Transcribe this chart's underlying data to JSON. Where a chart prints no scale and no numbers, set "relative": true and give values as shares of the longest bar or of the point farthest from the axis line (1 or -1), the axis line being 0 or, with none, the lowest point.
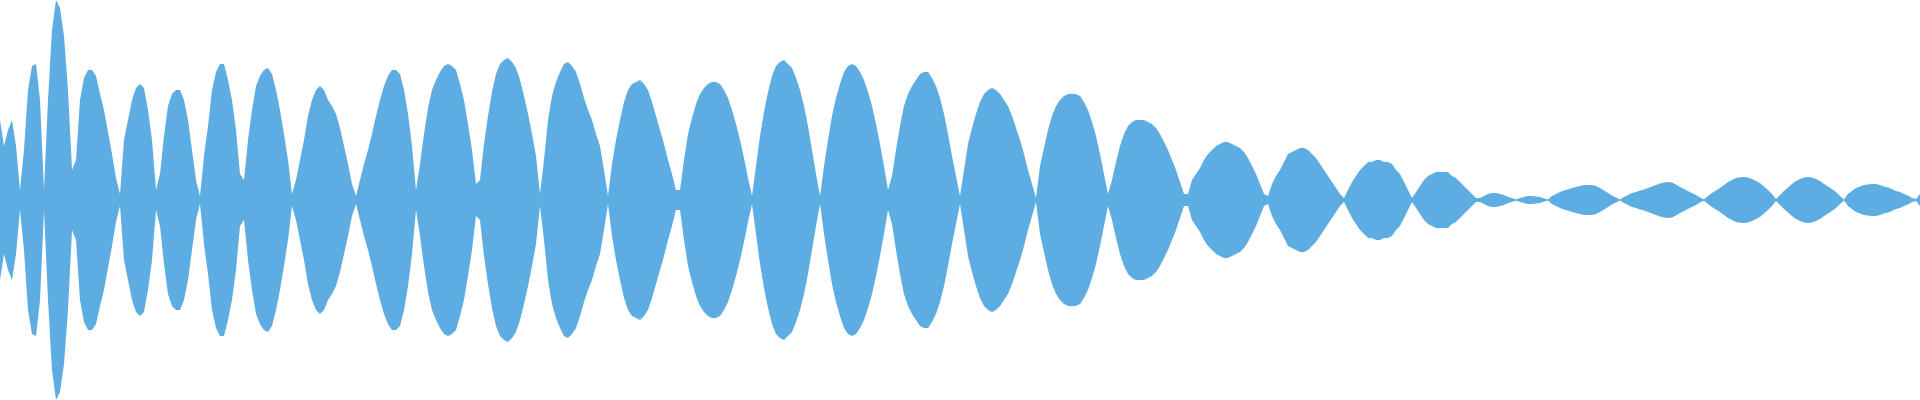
{
  "chart_data": {
    "type": "area",
    "relative": true,
    "categories": [
      null,
      null,
      null,
      null,
      null,
      null,
      null,
      null,
      null,
      null,
      null,
      null,
      null,
      null,
      null,
      null,
      null,
      null,
      null,
      null,
      null,
      null,
      null,
      null,
      null,
      null,
      null,
      null,
      null,
      null,
      null,
      null,
      null,
      null,
      null,
      null,
      null,
      null,
      null,
      null,
      null,
      null,
      null,
      null,
      null,
      null,
      null,
      null,
      null,
      null,
      null,
      null,
      null,
      null,
      null,
      null,
      null,
      null,
      null,
      null,
      null,
      null,
      null,
      null,
      null,
      null,
      null,
      null,
      null,
      null,
      null,
      null,
      null,
      null,
      null,
      null,
      null,
      null,
      null,
      null,
      null,
      null,
      null,
      null,
      null,
      null,
      null,
      null,
      null,
      null,
      null,
      null,
      null,
      null,
      null,
      null,
      null,
      null,
      null,
      null,
      null,
      null,
      null,
      null,
      null,
      null,
      null,
      null,
      null,
      null,
      null,
      null,
      null,
      null,
      null,
      null,
      null,
      null,
      null,
      null,
      null,
      null,
      null,
      null,
      null,
      null,
      null,
      null,
      null,
      null,
      null,
      null,
      null,
      null,
      null,
      null,
      null,
      null,
      null,
      null,
      null,
      null,
      null,
      null,
      null,
      null,
      null,
      null,
      null,
      null,
      null,
      null,
      null,
      null,
      null,
      null,
      null,
      null,
      null,
      null,
      null,
      null,
      null,
      null,
      null,
      null,
      null,
      null,
      null,
      null,
      null,
      null,
      null,
      null,
      null,
      null,
      null,
      null,
      null,
      null,
      null,
      null,
      null,
      null,
      null,
      null,
      null,
      null,
      null,
      null,
      null,
      null,
      null,
      null,
      null,
      null,
      null,
      null,
      null,
      null,
      null,
      null,
      null,
      null,
      null,
      null,
      null,
      null,
      null,
      null,
      null,
      null,
      null,
      null,
      null,
      null,
      null,
      null,
      null,
      null,
      null,
      null,
      null,
      null,
      null,
      null,
      null,
      null,
      null,
      null,
      null,
      null,
      null,
      null,
      null,
      null,
      null,
      null,
      null,
      null,
      null,
      null,
      null,
      null,
      null,
      null,
      null,
      null,
      null,
      null,
      null,
      null,
      null,
      null,
      null,
      null,
      null,
      null,
      null,
      null,
      null,
      null,
      null,
      null,
      null,
      null,
      null,
      null,
      null,
      null,
      null,
      null,
      null,
      null,
      null,
      null,
      null,
      null,
      null,
      null,
      null,
      null,
      null,
      null,
      null,
      null,
      null,
      null,
      null,
      null,
      null,
      null,
      null,
      null,
      null,
      null,
      null,
      null,
      null,
      null,
      null,
      null,
      null,
      null,
      null,
      null,
      null,
      null,
      null,
      null,
      null,
      null,
      null,
      null,
      null,
      null,
      null,
      null,
      null,
      null,
      null,
      null,
      null,
      null,
      null,
      null,
      null,
      null,
      null,
      null,
      null,
      null,
      null,
      null,
      null,
      null,
      null,
      null,
      null,
      null,
      null,
      null,
      null,
      null,
      null,
      null,
      null,
      null,
      null,
      null,
      null,
      null,
      null,
      null,
      null,
      null,
      null,
      null,
      null,
      null,
      null,
      null,
      null,
      null,
      null,
      null,
      null,
      null,
      null,
      null,
      null,
      null,
      null,
      null,
      null,
      null,
      null,
      null,
      null,
      null,
      null,
      null,
      null,
      null,
      null,
      null,
      null,
      null,
      null,
      null,
      null,
      null,
      null,
      null,
      null,
      null,
      null,
      null,
      null,
      null,
      null,
      null,
      null,
      null,
      null,
      null,
      null,
      null,
      null,
      null,
      null,
      null,
      null,
      null,
      null,
      null,
      null,
      null,
      null,
      null,
      null,
      null,
      null,
      null,
      null,
      null,
      null,
      null,
      null,
      null,
      null,
      null,
      null,
      null,
      null,
      null,
      null,
      null,
      null,
      null,
      null,
      null,
      null,
      null,
      null,
      null,
      null,
      null,
      null,
      null,
      null,
      null,
      null,
      null,
      null,
      null,
      null,
      null,
      null,
      null,
      null,
      null,
      null,
      null,
      null,
      null,
      null,
      null,
      null,
      null,
      null,
      null,
      null,
      null,
      null,
      null,
      null,
      null,
      null,
      null,
      null
    ],
    "series": [
      {
        "color": "#5dade2",
        "values": [
          0.4,
          0.27,
          0.35,
          0.4,
          0.27,
          0.05,
          0.25,
          0.55,
          0.67,
          0.68,
          0.5,
          0.05,
          0.5,
          0.85,
          1.0,
          0.96,
          0.82,
          0.55,
          0.15,
          0.2,
          0.5,
          0.61,
          0.65,
          0.65,
          0.62,
          0.53,
          0.45,
          0.34,
          0.23,
          0.11,
          0.03,
          0.3,
          0.4,
          0.5,
          0.56,
          0.58,
          0.56,
          0.45,
          0.3,
          0.05,
          0.13,
          0.32,
          0.47,
          0.53,
          0.55,
          0.55,
          0.5,
          0.4,
          0.25,
          0.1,
          0.02,
          0.22,
          0.37,
          0.55,
          0.64,
          0.68,
          0.68,
          0.6,
          0.5,
          0.35,
          0.13,
          0.1,
          0.3,
          0.45,
          0.57,
          0.62,
          0.65,
          0.66,
          0.63,
          0.55,
          0.45,
          0.33,
          0.2,
          0.03,
          0.1,
          0.2,
          0.3,
          0.42,
          0.5,
          0.55,
          0.57,
          0.55,
          0.5,
          0.47,
          0.43,
          0.36,
          0.27,
          0.18,
          0.08,
          0.02,
          0.1,
          0.18,
          0.25,
          0.33,
          0.42,
          0.5,
          0.57,
          0.62,
          0.65,
          0.65,
          0.63,
          0.55,
          0.43,
          0.27,
          0.05,
          0.18,
          0.33,
          0.46,
          0.55,
          0.6,
          0.64,
          0.67,
          0.68,
          0.67,
          0.65,
          0.58,
          0.5,
          0.38,
          0.25,
          0.08,
          0.1,
          0.28,
          0.42,
          0.54,
          0.63,
          0.68,
          0.7,
          0.71,
          0.69,
          0.66,
          0.6,
          0.52,
          0.43,
          0.33,
          0.22,
          0.03,
          0.2,
          0.4,
          0.52,
          0.59,
          0.64,
          0.68,
          0.69,
          0.67,
          0.64,
          0.58,
          0.51,
          0.45,
          0.4,
          0.33,
          0.27,
          0.15,
          0.02,
          0.18,
          0.3,
          0.4,
          0.49,
          0.55,
          0.58,
          0.59,
          0.6,
          0.58,
          0.55,
          0.49,
          0.42,
          0.35,
          0.28,
          0.2,
          0.13,
          0.05,
          0.05,
          0.2,
          0.33,
          0.41,
          0.48,
          0.53,
          0.56,
          0.58,
          0.59,
          0.59,
          0.58,
          0.55,
          0.51,
          0.45,
          0.38,
          0.3,
          0.21,
          0.11,
          0.02,
          0.17,
          0.32,
          0.44,
          0.54,
          0.62,
          0.67,
          0.69,
          0.7,
          0.68,
          0.66,
          0.61,
          0.55,
          0.47,
          0.37,
          0.25,
          0.13,
          0.02,
          0.17,
          0.3,
          0.42,
          0.51,
          0.58,
          0.64,
          0.67,
          0.68,
          0.67,
          0.64,
          0.6,
          0.54,
          0.47,
          0.38,
          0.28,
          0.17,
          0.05,
          0.12,
          0.25,
          0.37,
          0.47,
          0.53,
          0.57,
          0.6,
          0.63,
          0.64,
          0.64,
          0.61,
          0.57,
          0.51,
          0.43,
          0.33,
          0.22,
          0.12,
          0.02,
          0.15,
          0.28,
          0.36,
          0.43,
          0.49,
          0.53,
          0.55,
          0.56,
          0.55,
          0.53,
          0.5,
          0.47,
          0.42,
          0.36,
          0.3,
          0.23,
          0.15,
          0.08,
          0.01,
          0.17,
          0.26,
          0.35,
          0.42,
          0.47,
          0.5,
          0.52,
          0.53,
          0.53,
          0.53,
          0.52,
          0.49,
          0.45,
          0.39,
          0.32,
          0.23,
          0.13,
          0.03,
          0.1,
          0.19,
          0.27,
          0.33,
          0.37,
          0.39,
          0.4,
          0.4,
          0.4,
          0.39,
          0.38,
          0.36,
          0.33,
          0.29,
          0.25,
          0.2,
          0.15,
          0.09,
          0.03,
          0.03,
          0.1,
          0.13,
          0.16,
          0.2,
          0.23,
          0.25,
          0.27,
          0.28,
          0.29,
          0.29,
          0.28,
          0.27,
          0.26,
          0.24,
          0.21,
          0.17,
          0.13,
          0.08,
          0.03,
          0.02,
          0.08,
          0.12,
          0.15,
          0.19,
          0.23,
          0.24,
          0.25,
          0.26,
          0.26,
          0.25,
          0.23,
          0.21,
          0.18,
          0.15,
          0.12,
          0.09,
          0.06,
          0.03,
          0.01,
          0.05,
          0.09,
          0.12,
          0.15,
          0.17,
          0.19,
          0.19,
          0.2,
          0.2,
          0.19,
          0.19,
          0.18,
          0.15,
          0.13,
          0.09,
          0.05,
          0.01,
          0.04,
          0.07,
          0.1,
          0.12,
          0.13,
          0.14,
          0.14,
          0.14,
          0.14,
          0.12,
          0.11,
          0.09,
          0.07,
          0.05,
          0.03,
          0.01,
          0.01,
          0.02,
          0.03,
          0.035,
          0.035,
          0.03,
          0.025,
          0.015,
          0.01,
          0.003,
          0.01,
          0.015,
          0.02,
          0.02,
          0.018,
          0.015,
          0.008,
          0.003,
          0.02,
          0.03,
          0.04,
          0.048,
          0.053,
          0.06,
          0.065,
          0.07,
          0.075,
          0.075,
          0.075,
          0.07,
          0.06,
          0.048,
          0.035,
          0.022,
          0.012,
          0.003,
          0.015,
          0.025,
          0.035,
          0.04,
          0.047,
          0.053,
          0.06,
          0.068,
          0.075,
          0.082,
          0.088,
          0.09,
          0.088,
          0.078,
          0.065,
          0.055,
          0.045,
          0.035,
          0.025,
          0.013,
          0.003,
          0.02,
          0.035,
          0.048,
          0.06,
          0.075,
          0.09,
          0.1,
          0.11,
          0.114,
          0.115,
          0.112,
          0.105,
          0.095,
          0.085,
          0.068,
          0.05,
          0.03,
          0.005,
          0.025,
          0.045,
          0.063,
          0.08,
          0.095,
          0.105,
          0.112,
          0.115,
          0.112,
          0.105,
          0.095,
          0.08,
          0.068,
          0.055,
          0.04,
          0.02,
          0.003,
          0.03,
          0.045,
          0.06,
          0.068,
          0.075,
          0.078,
          0.08,
          0.08,
          0.075,
          0.068,
          0.063,
          0.055,
          0.045,
          0.04,
          0.03,
          0.022,
          0.01,
          0.005,
          0.03
        ]
      },
      {
        "color": "#5dade2",
        "values": [
          -0.4,
          -0.27,
          -0.35,
          -0.4,
          -0.27,
          -0.05,
          -0.25,
          -0.55,
          -0.67,
          -0.68,
          -0.5,
          -0.05,
          -0.5,
          -0.85,
          -1.0,
          -0.96,
          -0.82,
          -0.55,
          -0.15,
          -0.2,
          -0.5,
          -0.61,
          -0.65,
          -0.65,
          -0.62,
          -0.53,
          -0.45,
          -0.34,
          -0.23,
          -0.11,
          -0.03,
          -0.3,
          -0.4,
          -0.5,
          -0.56,
          -0.58,
          -0.56,
          -0.45,
          -0.3,
          -0.05,
          -0.13,
          -0.32,
          -0.47,
          -0.53,
          -0.55,
          -0.55,
          -0.5,
          -0.4,
          -0.25,
          -0.1,
          -0.02,
          -0.22,
          -0.37,
          -0.55,
          -0.64,
          -0.68,
          -0.68,
          -0.6,
          -0.5,
          -0.35,
          -0.13,
          -0.1,
          -0.3,
          -0.45,
          -0.57,
          -0.62,
          -0.65,
          -0.66,
          -0.63,
          -0.55,
          -0.45,
          -0.33,
          -0.2,
          -0.03,
          -0.1,
          -0.2,
          -0.3,
          -0.42,
          -0.5,
          -0.55,
          -0.57,
          -0.55,
          -0.5,
          -0.47,
          -0.43,
          -0.36,
          -0.27,
          -0.18,
          -0.08,
          -0.02,
          -0.1,
          -0.18,
          -0.25,
          -0.33,
          -0.42,
          -0.5,
          -0.57,
          -0.62,
          -0.65,
          -0.65,
          -0.63,
          -0.55,
          -0.43,
          -0.27,
          -0.05,
          -0.18,
          -0.33,
          -0.46,
          -0.55,
          -0.6,
          -0.64,
          -0.67,
          -0.68,
          -0.67,
          -0.65,
          -0.58,
          -0.5,
          -0.38,
          -0.25,
          -0.08,
          -0.1,
          -0.28,
          -0.42,
          -0.54,
          -0.63,
          -0.68,
          -0.7,
          -0.71,
          -0.69,
          -0.66,
          -0.6,
          -0.52,
          -0.43,
          -0.33,
          -0.22,
          -0.03,
          -0.2,
          -0.4,
          -0.52,
          -0.59,
          -0.64,
          -0.68,
          -0.69,
          -0.67,
          -0.64,
          -0.58,
          -0.51,
          -0.45,
          -0.4,
          -0.33,
          -0.27,
          -0.15,
          -0.02,
          -0.18,
          -0.3,
          -0.4,
          -0.49,
          -0.55,
          -0.58,
          -0.59,
          -0.6,
          -0.58,
          -0.55,
          -0.49,
          -0.42,
          -0.35,
          -0.28,
          -0.2,
          -0.13,
          -0.05,
          -0.05,
          -0.2,
          -0.33,
          -0.41,
          -0.48,
          -0.53,
          -0.56,
          -0.58,
          -0.59,
          -0.59,
          -0.58,
          -0.55,
          -0.51,
          -0.45,
          -0.38,
          -0.3,
          -0.21,
          -0.11,
          -0.02,
          -0.17,
          -0.32,
          -0.44,
          -0.54,
          -0.62,
          -0.67,
          -0.69,
          -0.7,
          -0.68,
          -0.66,
          -0.61,
          -0.55,
          -0.47,
          -0.37,
          -0.25,
          -0.13,
          -0.02,
          -0.17,
          -0.3,
          -0.42,
          -0.51,
          -0.58,
          -0.64,
          -0.67,
          -0.68,
          -0.67,
          -0.64,
          -0.6,
          -0.54,
          -0.47,
          -0.38,
          -0.28,
          -0.17,
          -0.05,
          -0.12,
          -0.25,
          -0.37,
          -0.47,
          -0.53,
          -0.57,
          -0.6,
          -0.63,
          -0.64,
          -0.64,
          -0.61,
          -0.57,
          -0.51,
          -0.43,
          -0.33,
          -0.22,
          -0.12,
          -0.02,
          -0.15,
          -0.28,
          -0.36,
          -0.43,
          -0.49,
          -0.53,
          -0.55,
          -0.56,
          -0.55,
          -0.53,
          -0.5,
          -0.47,
          -0.42,
          -0.36,
          -0.3,
          -0.23,
          -0.15,
          -0.08,
          -0.01,
          -0.17,
          -0.26,
          -0.35,
          -0.42,
          -0.47,
          -0.5,
          -0.52,
          -0.53,
          -0.53,
          -0.53,
          -0.52,
          -0.49,
          -0.45,
          -0.39,
          -0.32,
          -0.23,
          -0.13,
          -0.03,
          -0.1,
          -0.19,
          -0.27,
          -0.33,
          -0.37,
          -0.39,
          -0.4,
          -0.4,
          -0.4,
          -0.39,
          -0.38,
          -0.36,
          -0.33,
          -0.29,
          -0.25,
          -0.2,
          -0.15,
          -0.09,
          -0.03,
          -0.03,
          -0.1,
          -0.13,
          -0.16,
          -0.2,
          -0.23,
          -0.25,
          -0.27,
          -0.28,
          -0.29,
          -0.29,
          -0.28,
          -0.27,
          -0.26,
          -0.24,
          -0.21,
          -0.17,
          -0.13,
          -0.08,
          -0.03,
          -0.02,
          -0.08,
          -0.12,
          -0.15,
          -0.19,
          -0.23,
          -0.24,
          -0.25,
          -0.26,
          -0.26,
          -0.25,
          -0.23,
          -0.21,
          -0.18,
          -0.15,
          -0.12,
          -0.09,
          -0.06,
          -0.03,
          -0.01,
          -0.05,
          -0.09,
          -0.12,
          -0.15,
          -0.17,
          -0.19,
          -0.19,
          -0.2,
          -0.2,
          -0.19,
          -0.19,
          -0.18,
          -0.15,
          -0.13,
          -0.09,
          -0.05,
          -0.01,
          -0.04,
          -0.07,
          -0.1,
          -0.12,
          -0.13,
          -0.14,
          -0.14,
          -0.14,
          -0.14,
          -0.12,
          -0.11,
          -0.09,
          -0.07,
          -0.05,
          -0.03,
          -0.01,
          -0.01,
          -0.02,
          -0.03,
          -0.035,
          -0.035,
          -0.03,
          -0.025,
          -0.015,
          -0.01,
          -0.003,
          -0.01,
          -0.015,
          -0.02,
          -0.02,
          -0.018,
          -0.015,
          -0.008,
          -0.003,
          -0.02,
          -0.03,
          -0.04,
          -0.048,
          -0.053,
          -0.06,
          -0.065,
          -0.07,
          -0.075,
          -0.075,
          -0.075,
          -0.07,
          -0.06,
          -0.048,
          -0.035,
          -0.022,
          -0.012,
          -0.003,
          -0.015,
          -0.025,
          -0.035,
          -0.04,
          -0.047,
          -0.053,
          -0.06,
          -0.068,
          -0.075,
          -0.082,
          -0.088,
          -0.09,
          -0.088,
          -0.078,
          -0.065,
          -0.055,
          -0.045,
          -0.035,
          -0.025,
          -0.013,
          -0.003,
          -0.02,
          -0.035,
          -0.048,
          -0.06,
          -0.075,
          -0.09,
          -0.1,
          -0.11,
          -0.114,
          -0.115,
          -0.112,
          -0.105,
          -0.095,
          -0.085,
          -0.068,
          -0.05,
          -0.03,
          -0.005,
          -0.025,
          -0.045,
          -0.063,
          -0.08,
          -0.095,
          -0.105,
          -0.112,
          -0.115,
          -0.112,
          -0.105,
          -0.095,
          -0.08,
          -0.068,
          -0.055,
          -0.04,
          -0.02,
          -0.003,
          -0.03,
          -0.045,
          -0.06,
          -0.068,
          -0.075,
          -0.078,
          -0.08,
          -0.08,
          -0.075,
          -0.068,
          -0.063,
          -0.055,
          -0.045,
          -0.04,
          -0.03,
          -0.022,
          -0.01,
          -0.005,
          -0.03
        ]
      }
    ]
  }
}
